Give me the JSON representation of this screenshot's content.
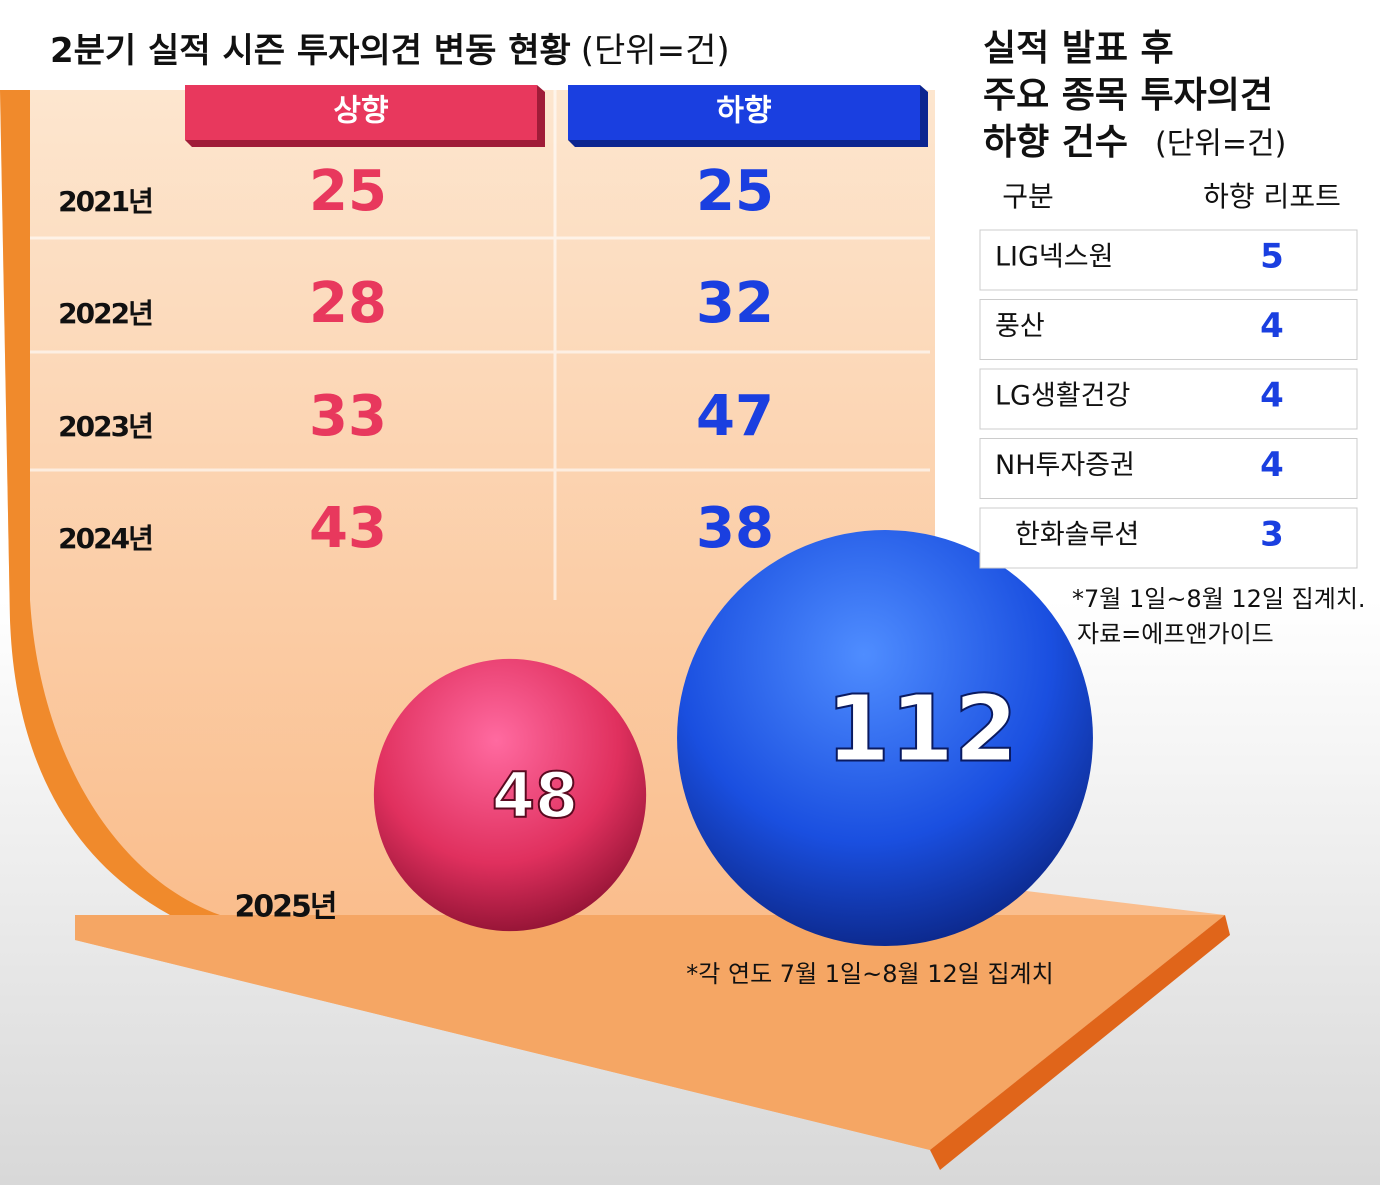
{
  "left": {
    "title": "2분기 실적 시즌 투자의견 변동 현황",
    "unit": "(단위=건)",
    "headers": [
      "상향",
      "하향"
    ],
    "rows": [
      [
        "2021년",
        "25",
        "25"
      ],
      [
        "2022년",
        "28",
        "32"
      ],
      [
        "2023년",
        "33",
        "47"
      ],
      [
        "2024년",
        "43",
        "38"
      ]
    ],
    "latest": {
      "year": "2025년",
      "up": 48,
      "down": 112
    },
    "footnote": "*각 연도 7월 1일~8월 12일 집계치"
  },
  "right": {
    "title": [
      "실적 발표 후",
      "주요 종목 투자의견",
      "하향 건수"
    ],
    "unit": "(단위=건)",
    "headers": [
      "구분",
      "하향 리포트"
    ],
    "rows": [
      [
        "LIG넥스원",
        "5"
      ],
      [
        "풍산",
        "4"
      ],
      [
        "LG생활건강",
        "4"
      ],
      [
        "NH투자증권",
        "4"
      ],
      [
        "한화솔루션",
        "3"
      ]
    ],
    "footnote": [
      "*7월 1일~8월 12일 집계치.",
      "자료=에프앤가이드"
    ]
  }
}
